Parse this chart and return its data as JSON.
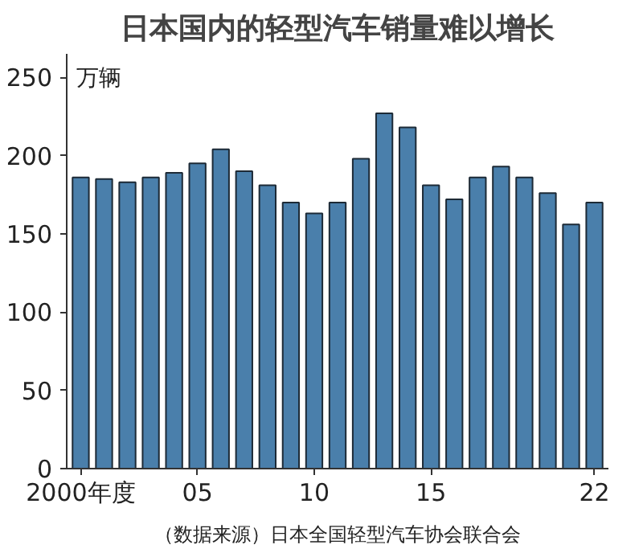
{
  "chart_data": {
    "type": "bar",
    "title": "日本国内的轻型汽车销量难以增长",
    "ylabel": "万辆",
    "x": [
      2000,
      2001,
      2002,
      2003,
      2004,
      2005,
      2006,
      2007,
      2008,
      2009,
      2010,
      2011,
      2012,
      2013,
      2014,
      2015,
      2016,
      2017,
      2018,
      2019,
      2020,
      2021,
      2022
    ],
    "values": [
      186,
      185,
      183,
      186,
      189,
      195,
      204,
      190,
      181,
      170,
      163,
      170,
      198,
      227,
      218,
      181,
      172,
      186,
      193,
      186,
      176,
      156,
      170
    ],
    "color": "#4a7fab",
    "xlim": [
      1999.4,
      2022.6
    ],
    "xticks": [
      {
        "value": 2000,
        "label": "2000年度"
      },
      {
        "value": 2005,
        "label": "05"
      },
      {
        "value": 2010,
        "label": "10"
      },
      {
        "value": 2015,
        "label": "15"
      },
      {
        "value": 2022,
        "label": "22"
      }
    ],
    "ylim": [
      0,
      265
    ],
    "yticks": [
      0,
      50,
      100,
      150,
      200,
      250
    ],
    "grid": false,
    "annotations": [
      "（数据来源）日本全国轻型汽车协会联合会"
    ]
  }
}
